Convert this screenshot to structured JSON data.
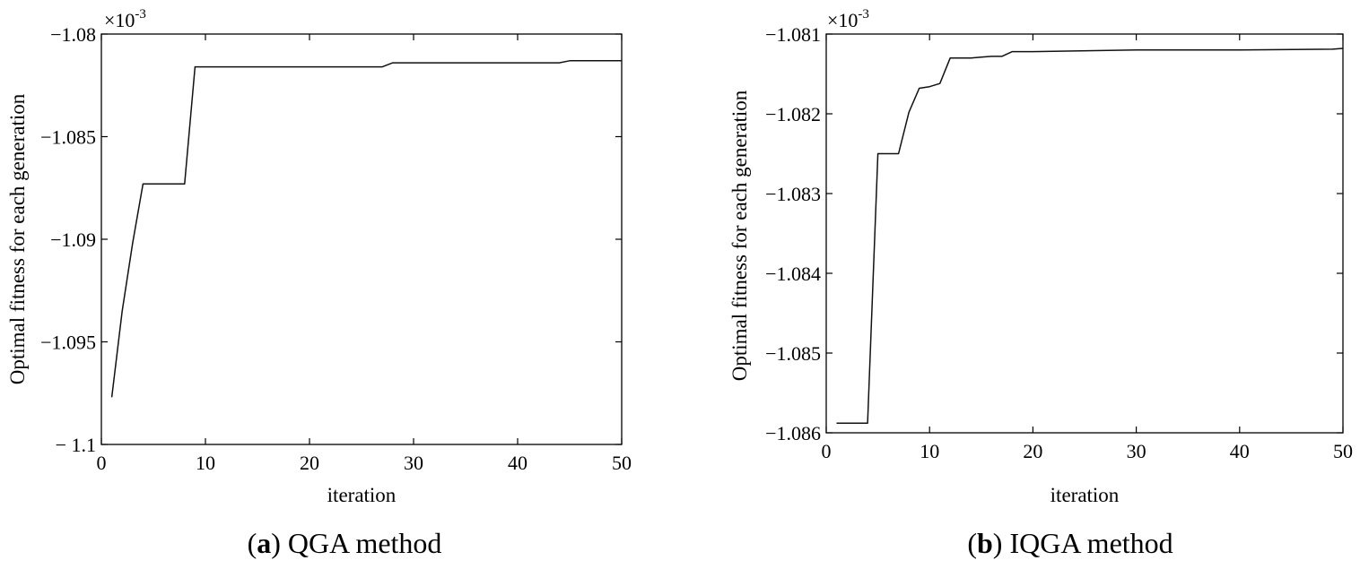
{
  "chart_data": [
    {
      "type": "line",
      "multiplier": {
        "base": "×10",
        "exp": "-3"
      },
      "xlabel": "iteration",
      "ylabel": "Optimal fitness for each generation",
      "xlim": [
        0,
        50
      ],
      "ylim": [
        -1.1,
        -1.08
      ],
      "x_ticks": [
        0,
        10,
        20,
        30,
        40,
        50
      ],
      "x_tick_labels": [
        "0",
        "10",
        "20",
        "30",
        "40",
        "50"
      ],
      "y_ticks": [
        -1.1,
        -1.095,
        -1.09,
        -1.085,
        -1.08
      ],
      "y_tick_labels": [
        "− 1.1",
        "−1.095",
        "−1.09",
        "−1.085",
        "−1.08"
      ],
      "grid": false,
      "caption": {
        "letter": "a",
        "text": " QGA method"
      },
      "series": [
        {
          "x": [
            1,
            2,
            3,
            4,
            5,
            6,
            7,
            8,
            9,
            10,
            20,
            26,
            27,
            28,
            44,
            45,
            50
          ],
          "y": [
            -1.0977,
            -1.0935,
            -1.0902,
            -1.0873,
            -1.0873,
            -1.0873,
            -1.0873,
            -1.0873,
            -1.0816,
            -1.0816,
            -1.0816,
            -1.0816,
            -1.0816,
            -1.0814,
            -1.0814,
            -1.0813,
            -1.0813
          ]
        }
      ]
    },
    {
      "type": "line",
      "multiplier": {
        "base": "×10",
        "exp": "-3"
      },
      "xlabel": "iteration",
      "ylabel": "Optimal fitness for each generation",
      "xlim": [
        0,
        50
      ],
      "ylim": [
        -1.086,
        -1.081
      ],
      "x_ticks": [
        0,
        10,
        20,
        30,
        40,
        50
      ],
      "x_tick_labels": [
        "0",
        "10",
        "20",
        "30",
        "40",
        "50"
      ],
      "y_ticks": [
        -1.086,
        -1.085,
        -1.084,
        -1.083,
        -1.082,
        -1.081
      ],
      "y_tick_labels": [
        "−1.086",
        "−1.085",
        "−1.084",
        "−1.083",
        "−1.082",
        "−1.081"
      ],
      "grid": false,
      "caption": {
        "letter": "b",
        "text": " IQGA method"
      },
      "series": [
        {
          "x": [
            1,
            2,
            3,
            4,
            5,
            6,
            7,
            8,
            9,
            10,
            11,
            12,
            13,
            14,
            15,
            16,
            17,
            18,
            19,
            20,
            30,
            40,
            49,
            50
          ],
          "y": [
            -1.08588,
            -1.08588,
            -1.08588,
            -1.08588,
            -1.0825,
            -1.0825,
            -1.0825,
            -1.08198,
            -1.08168,
            -1.08166,
            -1.08162,
            -1.0813,
            -1.0813,
            -1.0813,
            -1.08129,
            -1.08128,
            -1.08128,
            -1.08122,
            -1.08122,
            -1.08122,
            -1.0812,
            -1.0812,
            -1.08119,
            -1.08118
          ]
        }
      ]
    }
  ]
}
